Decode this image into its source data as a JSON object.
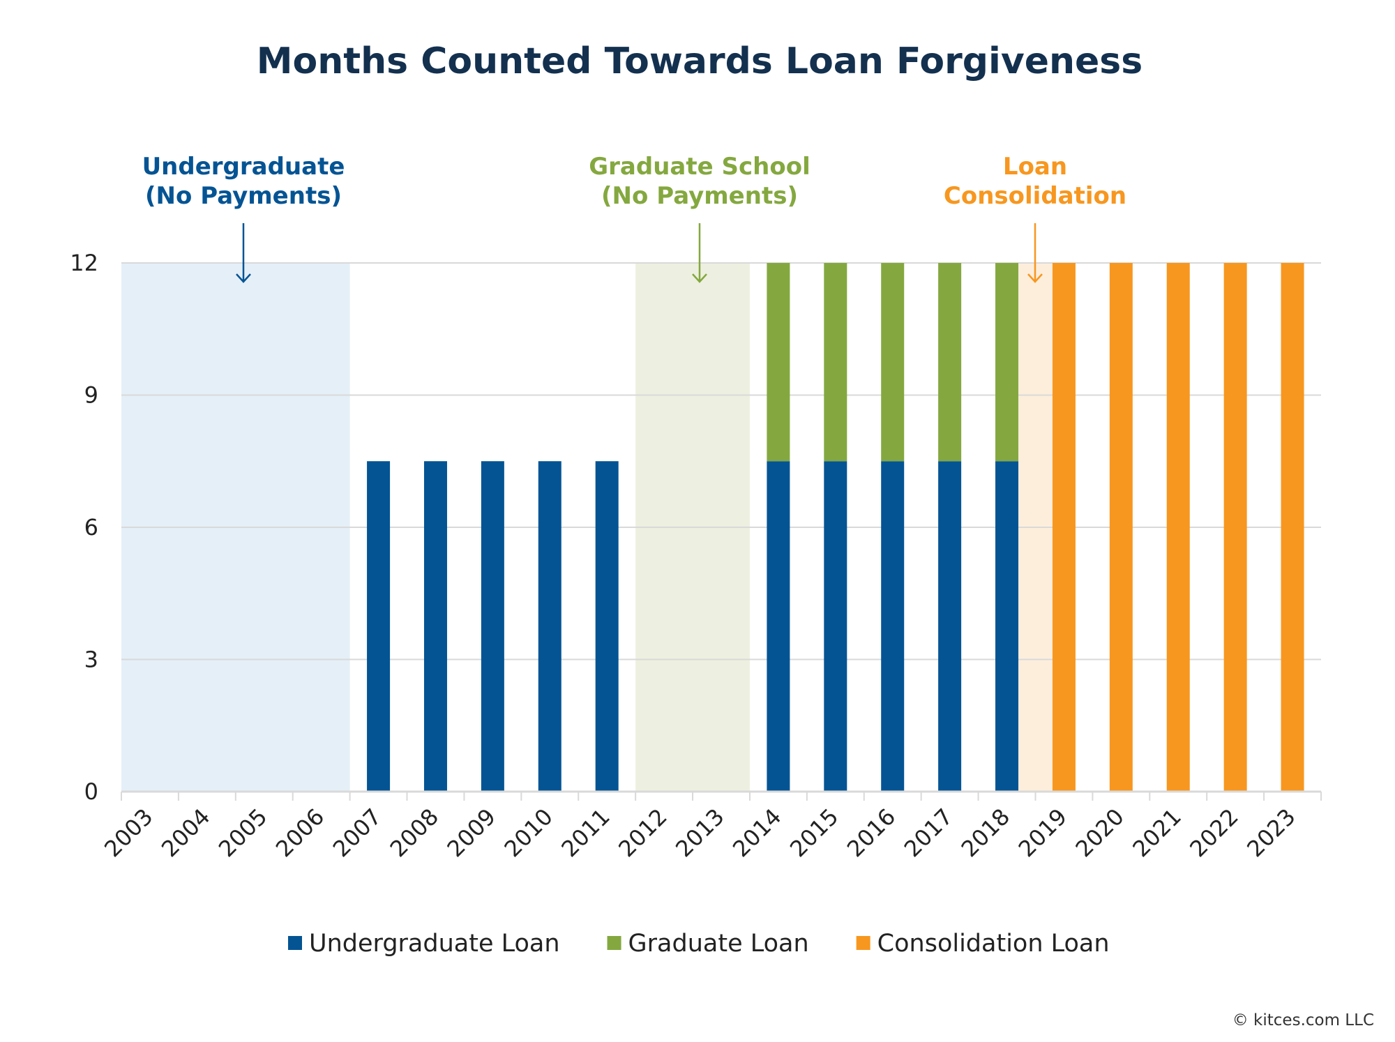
{
  "chart_data": {
    "type": "bar",
    "stacked": true,
    "title": "Months Counted Towards Loan Forgiveness",
    "xlabel": "",
    "ylabel": "",
    "ylim": [
      0,
      12
    ],
    "yticks": [
      0,
      3,
      6,
      9,
      12
    ],
    "grid": true,
    "legend_position": "bottom",
    "categories": [
      "2003",
      "2004",
      "2005",
      "2006",
      "2007",
      "2008",
      "2009",
      "2010",
      "2011",
      "2012",
      "2013",
      "2014",
      "2015",
      "2016",
      "2017",
      "2018",
      "2019",
      "2020",
      "2021",
      "2022",
      "2023"
    ],
    "series": [
      {
        "name": "Undergraduate Loan",
        "color": "#045494",
        "values": [
          0,
          0,
          0,
          0,
          7.5,
          7.5,
          7.5,
          7.5,
          7.5,
          0,
          0,
          7.5,
          7.5,
          7.5,
          7.5,
          7.5,
          0,
          0,
          0,
          0,
          0
        ]
      },
      {
        "name": "Graduate Loan",
        "color": "#84a83f",
        "values": [
          0,
          0,
          0,
          0,
          0,
          0,
          0,
          0,
          0,
          0,
          0,
          4.5,
          4.5,
          4.5,
          4.5,
          4.5,
          0,
          0,
          0,
          0,
          0
        ]
      },
      {
        "name": "Consolidation Loan",
        "color": "#f7971f",
        "values": [
          0,
          0,
          0,
          0,
          0,
          0,
          0,
          0,
          0,
          0,
          0,
          0,
          0,
          0,
          0,
          0,
          12,
          12,
          12,
          12,
          12
        ]
      }
    ],
    "annotations": [
      {
        "lines": [
          "Undergraduate",
          "(No Payments)"
        ],
        "color": "#045494",
        "shade": "#e5eff8",
        "from": "2003",
        "to": "2006",
        "arrow_at": "2005"
      },
      {
        "lines": [
          "Graduate School",
          "(No Payments)"
        ],
        "color": "#84a83f",
        "shade": "#edf0e0",
        "from": "2012",
        "to": "2013",
        "arrow_at": "2013"
      },
      {
        "lines": [
          "Loan",
          "Consolidation"
        ],
        "color": "#f7971f",
        "shade": "#fdeedc",
        "from": "2018",
        "to": "2019",
        "arrow_at": "2019"
      }
    ]
  },
  "footer": {
    "copyright": "© kitces.com LLC"
  }
}
